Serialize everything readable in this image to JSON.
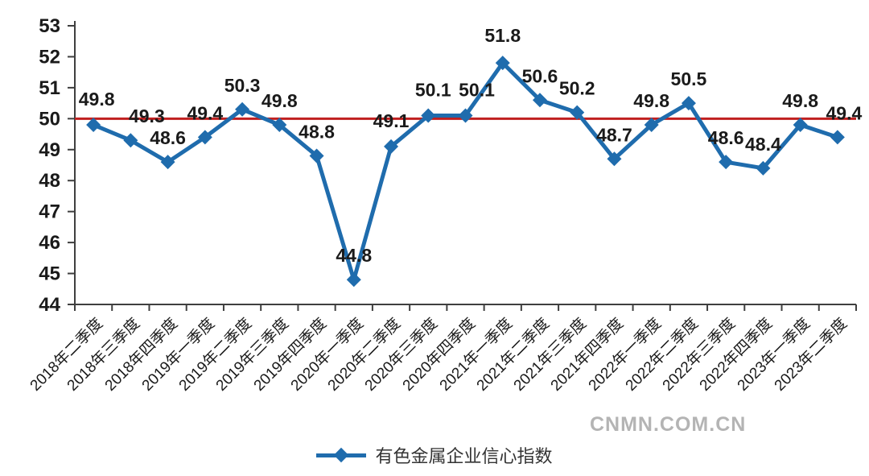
{
  "chart_data": {
    "type": "line",
    "title": "",
    "x": [
      "2018年二季度",
      "2018年三季度",
      "2018年四季度",
      "2019年一季度",
      "2019年二季度",
      "2019年三季度",
      "2019年四季度",
      "2020年一季度",
      "2020年二季度",
      "2020年三季度",
      "2020年四季度",
      "2021年一季度",
      "2021年二季度",
      "2021年三季度",
      "2021年四季度",
      "2022年一季度",
      "2022年二季度",
      "2022年三季度",
      "2022年四季度",
      "2023年一季度",
      "2023年二季度"
    ],
    "series": [
      {
        "name": "有色金属企业信心指数",
        "color": "#1f6cad",
        "marker": "diamond",
        "values": [
          49.8,
          49.3,
          48.6,
          49.4,
          50.3,
          49.8,
          48.8,
          44.8,
          49.1,
          50.1,
          50.1,
          51.8,
          50.6,
          50.2,
          48.7,
          49.8,
          50.5,
          48.6,
          48.4,
          49.8,
          49.4
        ]
      }
    ],
    "reference_line": {
      "value": 50,
      "color": "#c01f1f"
    },
    "ylim": [
      44,
      53
    ],
    "yticks": [
      44,
      45,
      46,
      47,
      48,
      49,
      50,
      51,
      52,
      53
    ],
    "grid": false,
    "legend_position": "bottom",
    "axis_color": "#3f3f3f",
    "label_color": "#1a1a1a"
  },
  "watermark": {
    "text": "CNMN.COM.CN"
  }
}
